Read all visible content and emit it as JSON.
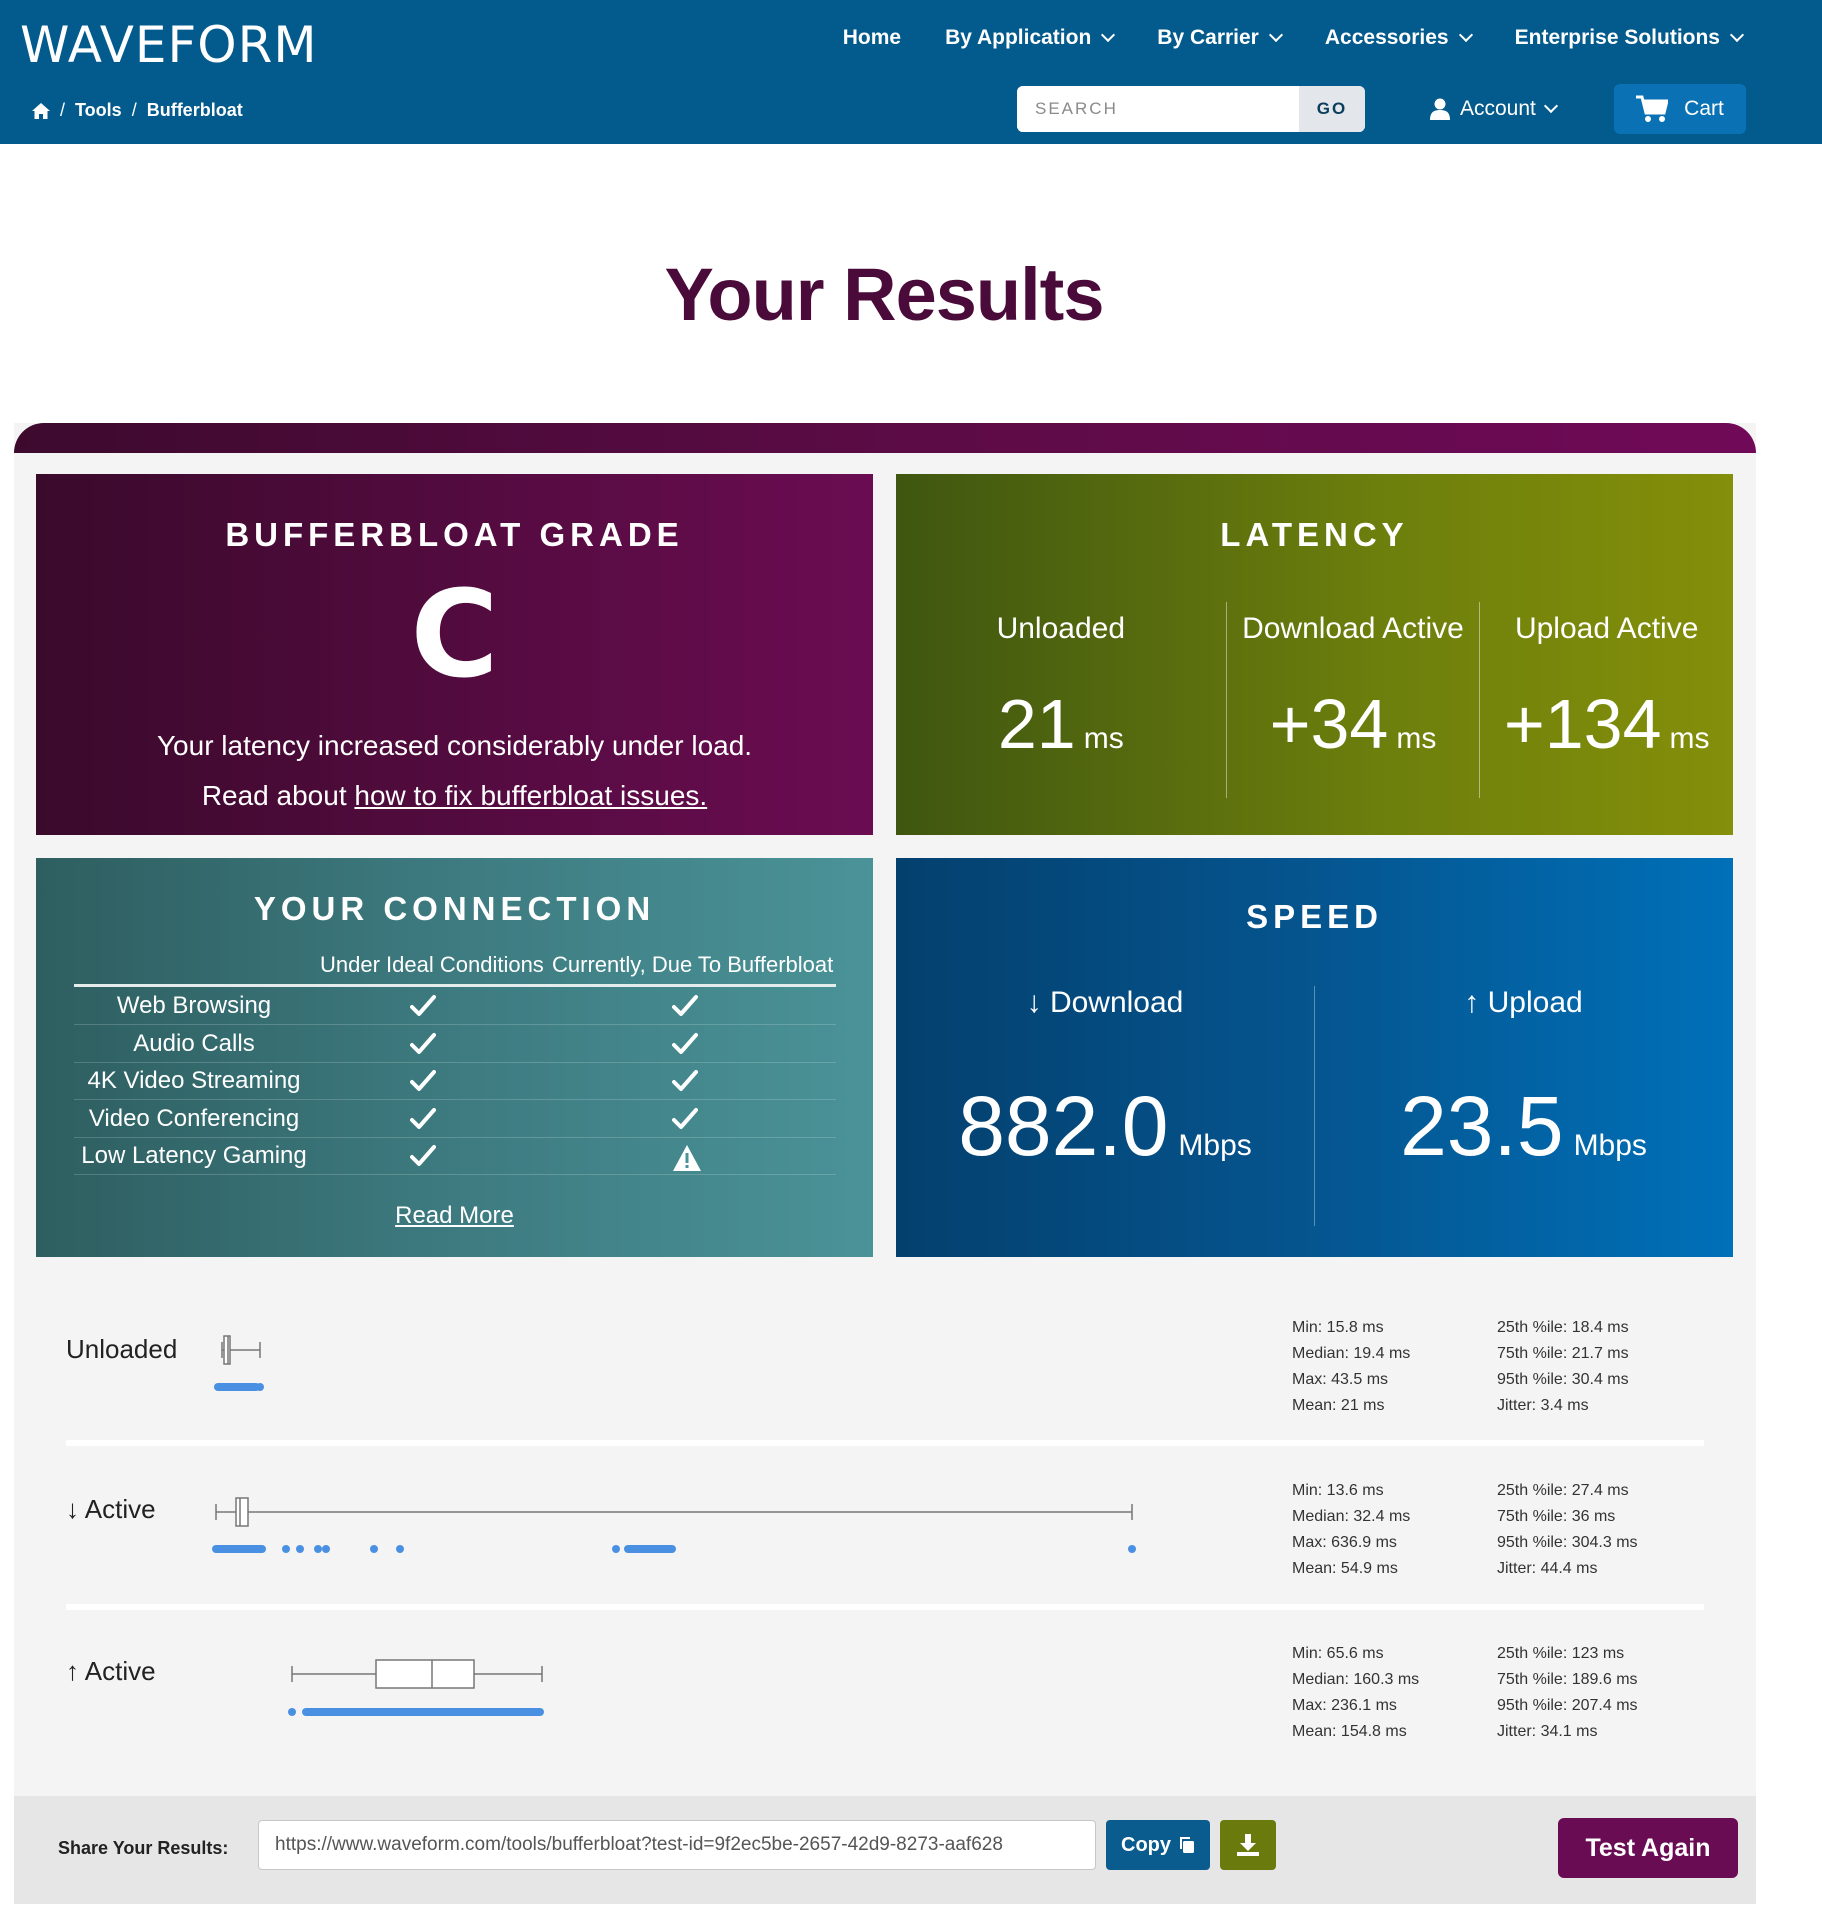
{
  "header": {
    "logo": "WAVEFORM",
    "nav": [
      {
        "label": "Home",
        "has_dropdown": false
      },
      {
        "label": "By Application",
        "has_dropdown": true
      },
      {
        "label": "By Carrier",
        "has_dropdown": true
      },
      {
        "label": "Accessories",
        "has_dropdown": true
      },
      {
        "label": "Enterprise Solutions",
        "has_dropdown": true
      }
    ],
    "breadcrumb": [
      "Tools",
      "Bufferbloat"
    ],
    "search": {
      "placeholder": "SEARCH",
      "button": "GO"
    },
    "account": "Account",
    "cart": "Cart",
    "colors": {
      "header_bg": "#035a8c",
      "cart_bg": "#0a72b4"
    }
  },
  "page_title": "Your Results",
  "grade": {
    "title": "BUFFERBLOAT GRADE",
    "letter": "C",
    "description": "Your latency increased considerably under load.",
    "read_prefix": "Read about ",
    "read_link": "how to fix bufferbloat issues."
  },
  "latency": {
    "title": "LATENCY",
    "columns": [
      {
        "label": "Unloaded",
        "value": "21",
        "unit": "ms"
      },
      {
        "label": "Download Active",
        "value": "+34",
        "unit": "ms"
      },
      {
        "label": "Upload Active",
        "value": "+134",
        "unit": "ms"
      }
    ]
  },
  "connection": {
    "title": "YOUR CONNECTION",
    "col_ideal": "Under Ideal Conditions",
    "col_current": "Currently, Due To Bufferbloat",
    "rows": [
      {
        "label": "Web Browsing",
        "ideal": "check-icon",
        "current": "check-icon"
      },
      {
        "label": "Audio Calls",
        "ideal": "check-icon",
        "current": "check-icon"
      },
      {
        "label": "4K Video Streaming",
        "ideal": "check-icon",
        "current": "check-icon"
      },
      {
        "label": "Video Conferencing",
        "ideal": "check-icon",
        "current": "check-icon"
      },
      {
        "label": "Low Latency Gaming",
        "ideal": "check-icon",
        "current": "warning-icon"
      }
    ],
    "read_more": "Read More"
  },
  "speed": {
    "title": "SPEED",
    "download": {
      "label": "↓ Download",
      "value": "882.0",
      "unit": "Mbps"
    },
    "upload": {
      "label": "↑ Upload",
      "value": "23.5",
      "unit": "Mbps"
    }
  },
  "latency_distribution": [
    {
      "label": "Unloaded",
      "stats_left": [
        "Min: 15.8 ms",
        "Median: 19.4 ms",
        "Max: 43.5 ms",
        "Mean: 21 ms"
      ],
      "stats_right": [
        "25th %ile: 18.4 ms",
        "75th %ile: 21.7 ms",
        "95th %ile: 30.4 ms",
        "Jitter: 3.4 ms"
      ]
    },
    {
      "label": "↓ Active",
      "stats_left": [
        "Min: 13.6 ms",
        "Median: 32.4 ms",
        "Max: 636.9 ms",
        "Mean: 54.9 ms"
      ],
      "stats_right": [
        "25th %ile: 27.4 ms",
        "75th %ile: 36 ms",
        "95th %ile: 304.3 ms",
        "Jitter: 44.4 ms"
      ]
    },
    {
      "label": "↑ Active",
      "stats_left": [
        "Min: 65.6 ms",
        "Median: 160.3 ms",
        "Max: 236.1 ms",
        "Mean: 154.8 ms"
      ],
      "stats_right": [
        "25th %ile: 123 ms",
        "75th %ile: 189.6 ms",
        "95th %ile: 207.4 ms",
        "Jitter: 34.1 ms"
      ]
    }
  ],
  "share": {
    "label": "Share Your Results:",
    "url": "https://www.waveform.com/tools/bufferbloat?test-id=9f2ec5be-2657-42d9-8273-aaf628",
    "copy": "Copy",
    "test_again": "Test Again"
  }
}
